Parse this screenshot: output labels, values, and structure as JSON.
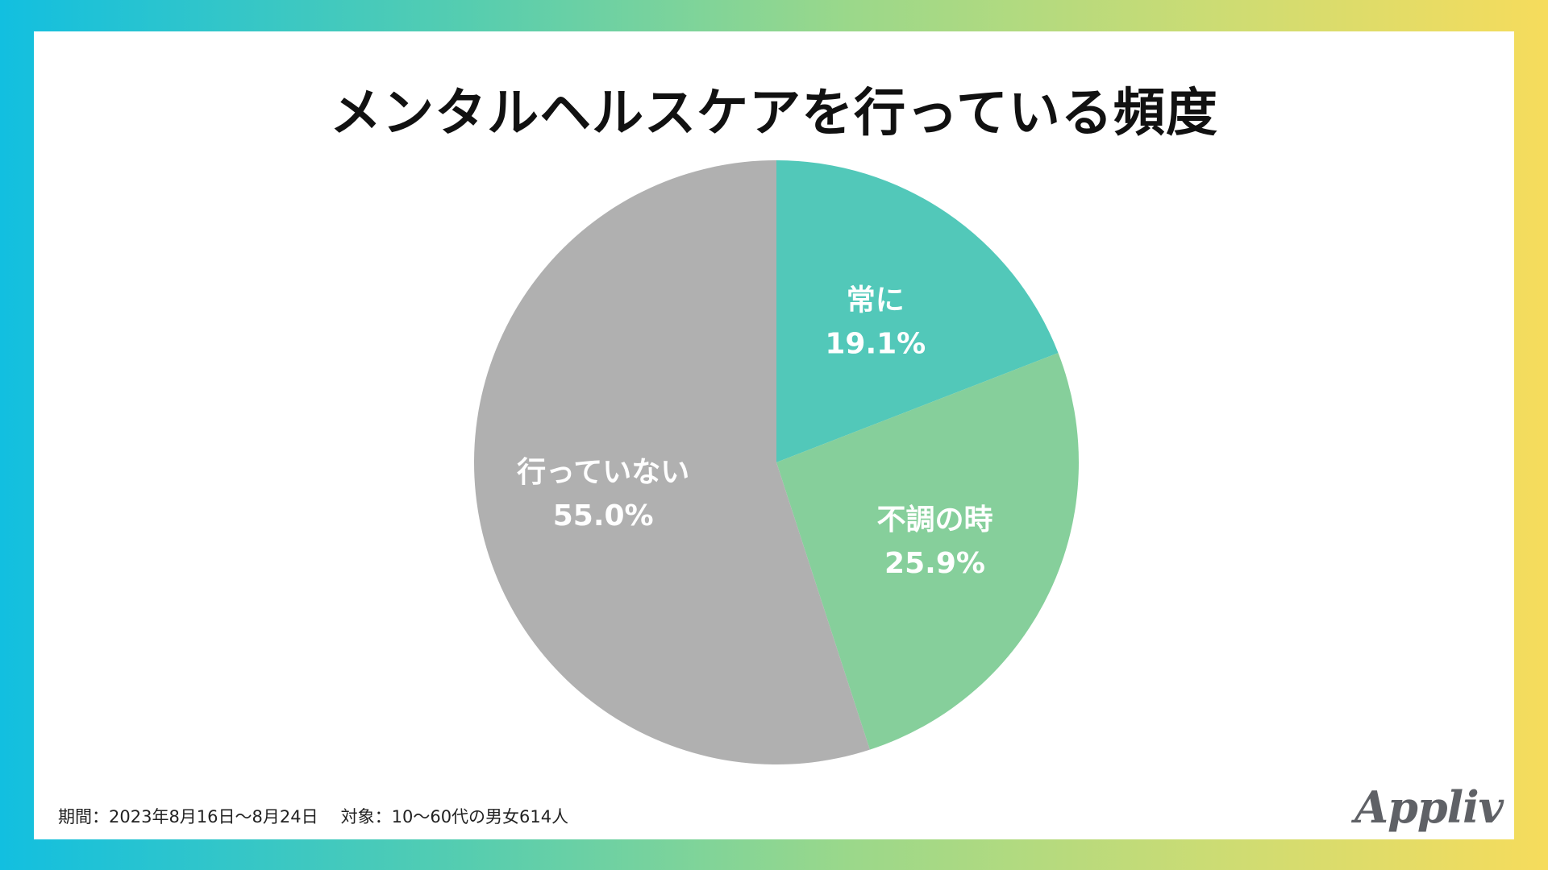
{
  "title": "メンタルヘルスケアを行っている頻度",
  "chart_data": {
    "type": "pie",
    "title": "メンタルヘルスケアを行っている頻度",
    "start": "12 o'clock",
    "direction": "clockwise",
    "slices": [
      {
        "label": "常に",
        "value": 19.1,
        "display": "19.1%",
        "color": "#52c8b9"
      },
      {
        "label": "不調の時",
        "value": 25.9,
        "display": "25.9%",
        "color": "#86cf9b"
      },
      {
        "label": "行っていない",
        "value": 55.0,
        "display": "55.0%",
        "color": "#b0b0b0"
      }
    ]
  },
  "footnote": {
    "period": "期間：2023年8月16日〜8月24日",
    "target": "対象：10〜60代の男女614人"
  },
  "logo": "Appliv",
  "colors": {
    "background_gradient": [
      "#12bfe0",
      "#55cdb0",
      "#9bd88a",
      "#cfdc72",
      "#f6dc5c"
    ],
    "card": "#ffffff",
    "label_text": "#ffffff"
  }
}
